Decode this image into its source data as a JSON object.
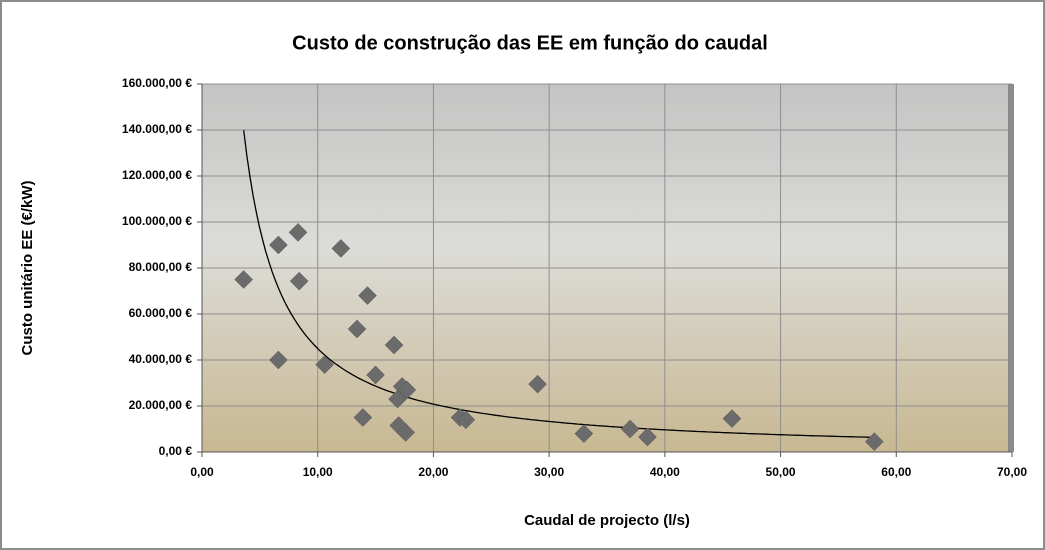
{
  "chart_data": {
    "type": "scatter",
    "title": "Custo de construção das EE em função do caudal",
    "x_label": "Caudal de projecto (l/s)",
    "y_label": "Custo unitário EE (€/kW)",
    "x": [
      3.6,
      6.6,
      8.3,
      8.4,
      6.6,
      12.0,
      14.3,
      13.4,
      13.9,
      10.6,
      15.0,
      16.6,
      17.3,
      17.7,
      16.9,
      17.0,
      17.6,
      22.3,
      22.8,
      29.0,
      33.0,
      37.0,
      38.5,
      45.8,
      58.1
    ],
    "values": [
      75000,
      90000,
      95500,
      74300,
      40000,
      88500,
      68000,
      53500,
      15000,
      38000,
      33500,
      46500,
      28500,
      27000,
      23000,
      11500,
      8500,
      15000,
      14000,
      29500,
      8000,
      10000,
      6500,
      14500,
      4500
    ],
    "color": "#6b6b6b",
    "trendline": "power",
    "trendline_color": "#000000",
    "xlim": [
      0,
      70
    ],
    "xticks": [
      {
        "value": 0,
        "label": "0,00"
      },
      {
        "value": 10,
        "label": "10,00"
      },
      {
        "value": 20,
        "label": "20,00"
      },
      {
        "value": 30,
        "label": "30,00"
      },
      {
        "value": 40,
        "label": "40,00"
      },
      {
        "value": 50,
        "label": "50,00"
      },
      {
        "value": 60,
        "label": "60,00"
      },
      {
        "value": 70,
        "label": "70,00"
      }
    ],
    "ylim": [
      0,
      160000
    ],
    "yticks": [
      {
        "value": 0,
        "label": "0,00 €"
      },
      {
        "value": 20000,
        "label": "20.000,00 €"
      },
      {
        "value": 40000,
        "label": "40.000,00 €"
      },
      {
        "value": 60000,
        "label": "60.000,00 €"
      },
      {
        "value": 80000,
        "label": "80.000,00 €"
      },
      {
        "value": 100000,
        "label": "100.000,00 €"
      },
      {
        "value": 120000,
        "label": "120.000,00 €"
      },
      {
        "value": 140000,
        "label": "140.000,00 €"
      },
      {
        "value": 160000,
        "label": "160.000,00 €"
      }
    ],
    "grid": true
  }
}
